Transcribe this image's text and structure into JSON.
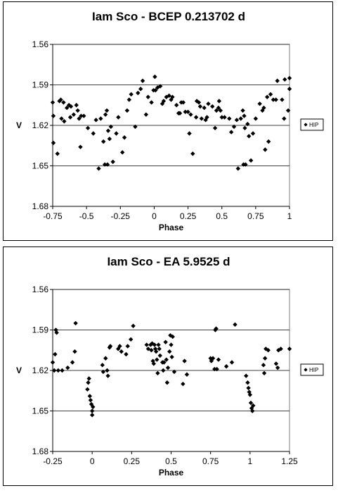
{
  "chart_data": [
    {
      "type": "scatter",
      "title": "Iam Sco - BCEP 0.213702 d",
      "xlabel": "Phase",
      "ylabel": "V",
      "xlim": [
        -0.75,
        1
      ],
      "ylim": [
        1.68,
        1.56
      ],
      "y_inverted": true,
      "x_ticks": [
        "-0.75",
        "-0.5",
        "-0.25",
        "0",
        "0.25",
        "0.5",
        "0.75",
        "1"
      ],
      "x_tick_values": [
        -0.75,
        -0.5,
        -0.25,
        0,
        0.25,
        0.5,
        0.75,
        1
      ],
      "y_ticks": [
        "1.56",
        "1.59",
        "1.62",
        "1.65",
        "1.68"
      ],
      "y_tick_values": [
        1.56,
        1.59,
        1.62,
        1.65,
        1.68
      ],
      "grid": "horizontal",
      "legend": {
        "position": "right",
        "entries": [
          "HIP"
        ]
      },
      "series": [
        {
          "name": "HIP",
          "marker": "diamond",
          "points": [
            [
              -0.75,
              1.603
            ],
            [
              -0.745,
              1.613
            ],
            [
              -0.745,
              1.633
            ],
            [
              -0.715,
              1.641
            ],
            [
              -0.7,
              1.602
            ],
            [
              -0.69,
              1.601
            ],
            [
              -0.685,
              1.615
            ],
            [
              -0.67,
              1.603
            ],
            [
              -0.665,
              1.617
            ],
            [
              -0.645,
              1.607
            ],
            [
              -0.63,
              1.605
            ],
            [
              -0.62,
              1.614
            ],
            [
              -0.615,
              1.606
            ],
            [
              -0.595,
              1.612
            ],
            [
              -0.575,
              1.605
            ],
            [
              -0.565,
              1.609
            ],
            [
              -0.555,
              1.615
            ],
            [
              -0.545,
              1.636
            ],
            [
              -0.54,
              1.613
            ],
            [
              -0.52,
              1.613
            ],
            [
              -0.49,
              1.622
            ],
            [
              -0.45,
              1.626
            ],
            [
              -0.43,
              1.616
            ],
            [
              -0.41,
              1.652
            ],
            [
              -0.395,
              1.615
            ],
            [
              -0.375,
              1.632
            ],
            [
              -0.365,
              1.649
            ],
            [
              -0.36,
              1.612
            ],
            [
              -0.35,
              1.609
            ],
            [
              -0.345,
              1.649
            ],
            [
              -0.34,
              1.624
            ],
            [
              -0.33,
              1.63
            ],
            [
              -0.32,
              1.621
            ],
            [
              -0.305,
              1.647
            ],
            [
              -0.28,
              1.626
            ],
            [
              -0.265,
              1.614
            ],
            [
              -0.235,
              1.64
            ],
            [
              -0.22,
              1.629
            ],
            [
              -0.2,
              1.609
            ],
            [
              -0.185,
              1.601
            ],
            [
              -0.17,
              1.597
            ],
            [
              -0.14,
              1.621
            ],
            [
              -0.12,
              1.596
            ],
            [
              -0.1,
              1.593
            ],
            [
              -0.085,
              1.587
            ],
            [
              -0.06,
              1.612
            ],
            [
              -0.045,
              1.599
            ],
            [
              -0.02,
              1.603
            ],
            [
              -0.005,
              1.594
            ],
            [
              0.005,
              1.584
            ],
            [
              0.01,
              1.594
            ],
            [
              0.025,
              1.592
            ],
            [
              0.045,
              1.591
            ],
            [
              0.06,
              1.604
            ],
            [
              0.07,
              1.602
            ],
            [
              0.09,
              1.599
            ],
            [
              0.11,
              1.598
            ],
            [
              0.125,
              1.601
            ],
            [
              0.135,
              1.599
            ],
            [
              0.165,
              1.605
            ],
            [
              0.18,
              1.611
            ],
            [
              0.19,
              1.611
            ],
            [
              0.2,
              1.603
            ],
            [
              0.215,
              1.603
            ],
            [
              0.23,
              1.61
            ],
            [
              0.25,
              1.61
            ],
            [
              0.26,
              1.626
            ],
            [
              0.27,
              1.612
            ],
            [
              0.285,
              1.641
            ],
            [
              0.31,
              1.614
            ],
            [
              0.315,
              1.602
            ],
            [
              0.33,
              1.603
            ],
            [
              0.34,
              1.606
            ],
            [
              0.35,
              1.615
            ],
            [
              0.37,
              1.607
            ],
            [
              0.38,
              1.616
            ],
            [
              0.39,
              1.614
            ],
            [
              0.4,
              1.604
            ],
            [
              0.43,
              1.606
            ],
            [
              0.45,
              1.622
            ],
            [
              0.46,
              1.609
            ],
            [
              0.475,
              1.607
            ],
            [
              0.48,
              1.602
            ],
            [
              0.49,
              1.609
            ],
            [
              0.5,
              1.614
            ],
            [
              0.52,
              1.614
            ],
            [
              0.555,
              1.615
            ],
            [
              0.57,
              1.625
            ],
            [
              0.59,
              1.621
            ],
            [
              0.61,
              1.616
            ],
            [
              0.62,
              1.652
            ],
            [
              0.64,
              1.615
            ],
            [
              0.655,
              1.609
            ],
            [
              0.66,
              1.649
            ],
            [
              0.665,
              1.613
            ],
            [
              0.67,
              1.622
            ],
            [
              0.675,
              1.649
            ],
            [
              0.69,
              1.619
            ],
            [
              0.7,
              1.628
            ],
            [
              0.715,
              1.646
            ],
            [
              0.73,
              1.626
            ],
            [
              0.75,
              1.615
            ],
            [
              0.78,
              1.604
            ],
            [
              0.8,
              1.609
            ],
            [
              0.81,
              1.607
            ],
            [
              0.82,
              1.638
            ],
            [
              0.835,
              1.599
            ],
            [
              0.845,
              1.632
            ],
            [
              0.86,
              1.597
            ],
            [
              0.88,
              1.601
            ],
            [
              0.9,
              1.601
            ],
            [
              0.91,
              1.587
            ],
            [
              0.945,
              1.601
            ],
            [
              0.96,
              1.615
            ],
            [
              0.965,
              1.586
            ],
            [
              0.99,
              1.609
            ],
            [
              1,
              1.585
            ],
            [
              1.0,
              1.593
            ]
          ]
        }
      ]
    },
    {
      "type": "scatter",
      "title": "Iam Sco - EA 5.9525 d",
      "xlabel": "Phase",
      "ylabel": "V",
      "xlim": [
        -0.25,
        1.25
      ],
      "ylim": [
        1.68,
        1.56
      ],
      "y_inverted": true,
      "x_ticks": [
        "-0.25",
        "0",
        "0.25",
        "0.5",
        "0.75",
        "1",
        "1.25"
      ],
      "x_tick_values": [
        -0.25,
        0,
        0.25,
        0.5,
        0.75,
        1,
        1.25
      ],
      "y_ticks": [
        "1.56",
        "1.59",
        "1.62",
        "1.65",
        "1.68"
      ],
      "y_tick_values": [
        1.56,
        1.59,
        1.62,
        1.65,
        1.68
      ],
      "grid": "horizontal",
      "legend": {
        "position": "right",
        "entries": [
          "HIP"
        ]
      },
      "series": [
        {
          "name": "HIP",
          "marker": "diamond",
          "points": [
            [
              -0.25,
              1.614
            ],
            [
              -0.24,
              1.62
            ],
            [
              -0.235,
              1.608
            ],
            [
              -0.23,
              1.59
            ],
            [
              -0.225,
              1.592
            ],
            [
              -0.215,
              1.62
            ],
            [
              -0.19,
              1.62
            ],
            [
              -0.155,
              1.618
            ],
            [
              -0.125,
              1.614
            ],
            [
              -0.11,
              1.606
            ],
            [
              -0.105,
              1.585
            ],
            [
              -0.03,
              1.634
            ],
            [
              -0.025,
              1.629
            ],
            [
              -0.02,
              1.626
            ],
            [
              -0.015,
              1.639
            ],
            [
              -0.01,
              1.642
            ],
            [
              -0.005,
              1.645
            ],
            [
              0,
              1.65
            ],
            [
              0.0,
              1.653
            ],
            [
              0.005,
              1.647
            ],
            [
              0.065,
              1.616
            ],
            [
              0.07,
              1.621
            ],
            [
              0.085,
              1.611
            ],
            [
              0.095,
              1.62
            ],
            [
              0.1,
              1.624
            ],
            [
              0.11,
              1.603
            ],
            [
              0.115,
              1.602
            ],
            [
              0.165,
              1.604
            ],
            [
              0.175,
              1.602
            ],
            [
              0.185,
              1.606
            ],
            [
              0.215,
              1.608
            ],
            [
              0.225,
              1.602
            ],
            [
              0.245,
              1.597
            ],
            [
              0.26,
              1.587
            ],
            [
              0.345,
              1.601
            ],
            [
              0.355,
              1.604
            ],
            [
              0.37,
              1.601
            ],
            [
              0.375,
              1.605
            ],
            [
              0.38,
              1.6
            ],
            [
              0.385,
              1.613
            ],
            [
              0.39,
              1.615
            ],
            [
              0.395,
              1.601
            ],
            [
              0.4,
              1.604
            ],
            [
              0.405,
              1.606
            ],
            [
              0.41,
              1.612
            ],
            [
              0.415,
              1.622
            ],
            [
              0.42,
              1.601
            ],
            [
              0.425,
              1.604
            ],
            [
              0.43,
              1.609
            ],
            [
              0.445,
              1.614
            ],
            [
              0.45,
              1.62
            ],
            [
              0.455,
              1.614
            ],
            [
              0.465,
              1.599
            ],
            [
              0.47,
              1.612
            ],
            [
              0.475,
              1.629
            ],
            [
              0.48,
              1.618
            ],
            [
              0.49,
              1.606
            ],
            [
              0.495,
              1.594
            ],
            [
              0.5,
              1.601
            ],
            [
              0.505,
              1.61
            ],
            [
              0.51,
              1.595
            ],
            [
              0.52,
              1.621
            ],
            [
              0.575,
              1.63
            ],
            [
              0.585,
              1.613
            ],
            [
              0.6,
              1.623
            ],
            [
              0.75,
              1.611
            ],
            [
              0.755,
              1.613
            ],
            [
              0.765,
              1.611
            ],
            [
              0.775,
              1.619
            ],
            [
              0.78,
              1.59
            ],
            [
              0.785,
              1.589
            ],
            [
              0.79,
              1.619
            ],
            [
              0.8,
              1.612
            ],
            [
              0.85,
              1.617
            ],
            [
              0.885,
              1.614
            ],
            [
              0.905,
              1.586
            ],
            [
              0.975,
              1.624
            ],
            [
              0.985,
              1.629
            ],
            [
              0.99,
              1.633
            ],
            [
              0.995,
              1.636
            ],
            [
              1.0,
              1.638
            ],
            [
              1.005,
              1.644
            ],
            [
              1.01,
              1.648
            ],
            [
              1.015,
              1.65
            ],
            [
              1.02,
              1.646
            ],
            [
              1.085,
              1.616
            ],
            [
              1.09,
              1.622
            ],
            [
              1.095,
              1.611
            ],
            [
              1.1,
              1.604
            ],
            [
              1.115,
              1.605
            ],
            [
              1.165,
              1.615
            ],
            [
              1.175,
              1.618
            ],
            [
              1.18,
              1.605
            ],
            [
              1.195,
              1.604
            ],
            [
              1.25,
              1.604
            ]
          ]
        }
      ]
    }
  ]
}
